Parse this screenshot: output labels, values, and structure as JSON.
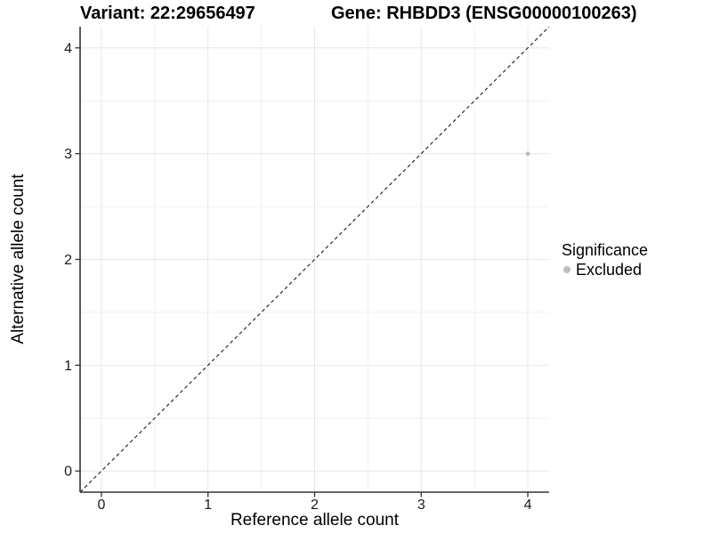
{
  "chart_data": {
    "type": "scatter",
    "titles": {
      "left": "Variant: 22:29656497",
      "right": "Gene: RHBDD3 (ENSG00000100263)"
    },
    "xlabel": "Reference allele count",
    "ylabel": "Alternative allele count",
    "xlim": [
      -0.2,
      4.2
    ],
    "ylim": [
      -0.2,
      4.2
    ],
    "x_ticks": [
      0,
      1,
      2,
      3,
      4
    ],
    "y_ticks": [
      0,
      1,
      2,
      3,
      4
    ],
    "x_minor_ticks": [
      0.5,
      1.5,
      2.5,
      3.5
    ],
    "y_minor_ticks": [
      0.5,
      1.5,
      2.5,
      3.5
    ],
    "grid": "major-and-minor",
    "identity_line": {
      "style": "dashed",
      "color": "#1a1a1a",
      "from": [
        -0.2,
        -0.2
      ],
      "to": [
        4.2,
        4.2
      ]
    },
    "series": [
      {
        "name": "Excluded",
        "color": "#bdbdbd",
        "points": [
          {
            "x": 4,
            "y": 3
          }
        ]
      }
    ],
    "legend": {
      "title": "Significance",
      "position": "right",
      "entries": [
        {
          "label": "Excluded",
          "color": "#bdbdbd",
          "marker": "circle"
        }
      ]
    },
    "style": {
      "background": "#ffffff",
      "major_grid_color": "#e6e6e6",
      "minor_grid_color": "#f1f1f1",
      "axis_line_color": "#333333",
      "tick_label_color": "#1a1a1a",
      "point_color": "#bdbdbd"
    }
  }
}
